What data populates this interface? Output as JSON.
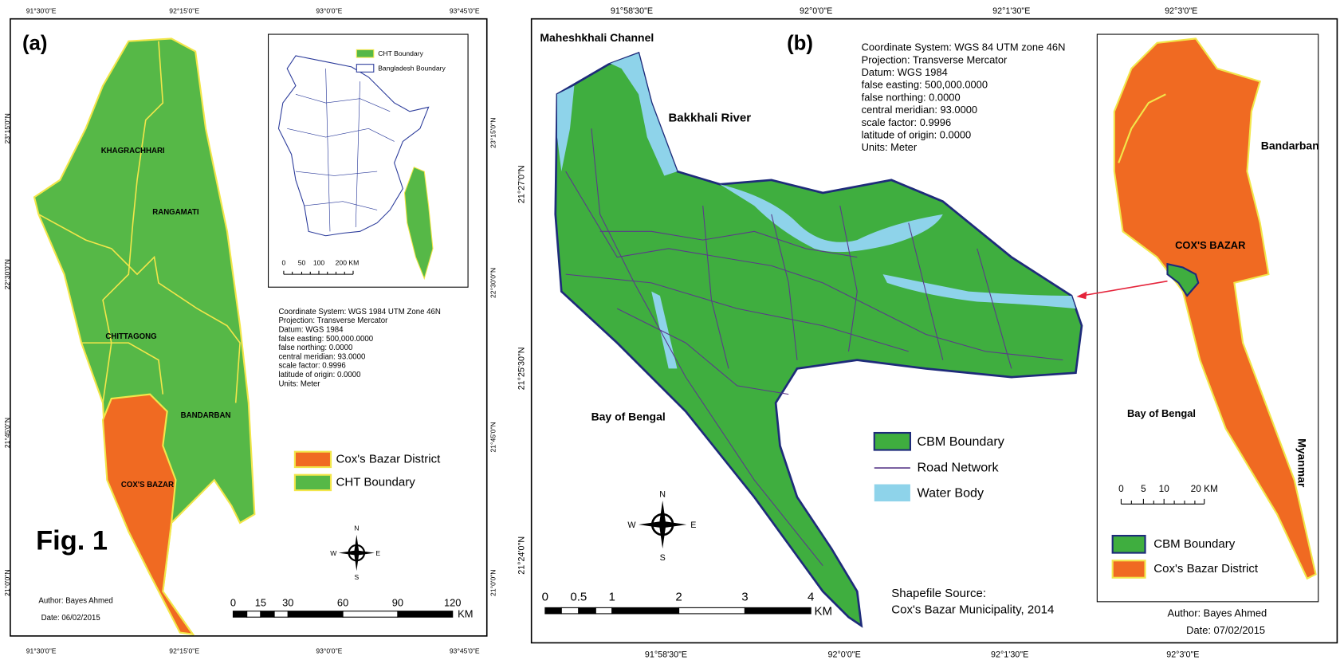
{
  "panel_a": {
    "label": "(a)",
    "top_ticks": [
      "91°30'0\"E",
      "92°15'0\"E",
      "93°0'0\"E",
      "93°45'0\"E"
    ],
    "bottom_ticks": [
      "91°30'0\"E",
      "92°15'0\"E",
      "93°0'0\"E",
      "93°45'0\"E"
    ],
    "left_ticks": [
      "23°15'0\"N",
      "22°30'0\"N",
      "21°45'0\"N",
      "21°0'0\"N"
    ],
    "right_ticks": [
      "23°15'0\"N",
      "22°30'0\"N",
      "21°45'0\"N",
      "21°0'0\"N"
    ],
    "regions": [
      "KHAGRACHHARI",
      "RANGAMATI",
      "CHITTAGONG",
      "BANDARBAN",
      "COX'S BAZAR"
    ],
    "inset": {
      "legend": [
        "CHT Boundary",
        "Bangladesh Boundary"
      ],
      "scale": [
        "0",
        "50",
        "100",
        "200 KM"
      ]
    },
    "projection": [
      "Coordinate System: WGS 1984 UTM Zone 46N",
      "Projection: Transverse Mercator",
      "Datum: WGS 1984",
      "false easting: 500,000.0000",
      "false northing: 0.0000",
      "central meridian: 93.0000",
      "scale factor: 0.9996",
      "latitude of origin: 0.0000",
      "Units: Meter"
    ],
    "legend": [
      "Cox's Bazar District",
      "CHT Boundary"
    ],
    "fig_label": "Fig. 1",
    "compass": [
      "N",
      "S",
      "E",
      "W"
    ],
    "author": "Author: Bayes Ahmed",
    "date": "Date: 06/02/2015",
    "scale": [
      "0",
      "15",
      "30",
      "60",
      "90",
      "120"
    ],
    "scale_unit": "KM"
  },
  "panel_b": {
    "label": "(b)",
    "top_ticks": [
      "91°58'30\"E",
      "92°0'0\"E",
      "92°1'30\"E",
      "92°3'0\"E"
    ],
    "bottom_ticks": [
      "91°58'30\"E",
      "92°0'0\"E",
      "92°1'30\"E",
      "92°3'0\"E"
    ],
    "left_ticks": [
      "21°27'0\"N",
      "21°25'30\"N",
      "21°24'0\"N"
    ],
    "places": [
      "Maheshkhali Channel",
      "Bakkhali River",
      "Bay of Bengal"
    ],
    "projection": [
      "Coordinate System: WGS 84 UTM zone 46N",
      "Projection: Transverse Mercator",
      "Datum: WGS 1984",
      "false easting: 500,000.0000",
      "false northing: 0.0000",
      "central meridian: 93.0000",
      "scale factor: 0.9996",
      "latitude of origin: 0.0000",
      "Units: Meter"
    ],
    "legend": [
      "CBM Boundary",
      "Road Network",
      "Water Body"
    ],
    "compass": [
      "N",
      "S",
      "E",
      "W"
    ],
    "scale": [
      "0",
      "0.5",
      "1",
      "2",
      "3",
      "4"
    ],
    "scale_unit": "KM",
    "source": [
      "Shapefile Source:",
      "Cox's Bazar Municipality, 2014"
    ],
    "inset": {
      "places": [
        "Bandarban",
        "COX'S BAZAR",
        "Bay of Bengal",
        "Myanmar"
      ],
      "scale": [
        "0",
        "5",
        "10",
        "20 KM"
      ],
      "legend": [
        "CBM Boundary",
        "Cox's Bazar District"
      ],
      "author": "Author: Bayes Ahmed",
      "date": "Date: 07/02/2015"
    }
  }
}
